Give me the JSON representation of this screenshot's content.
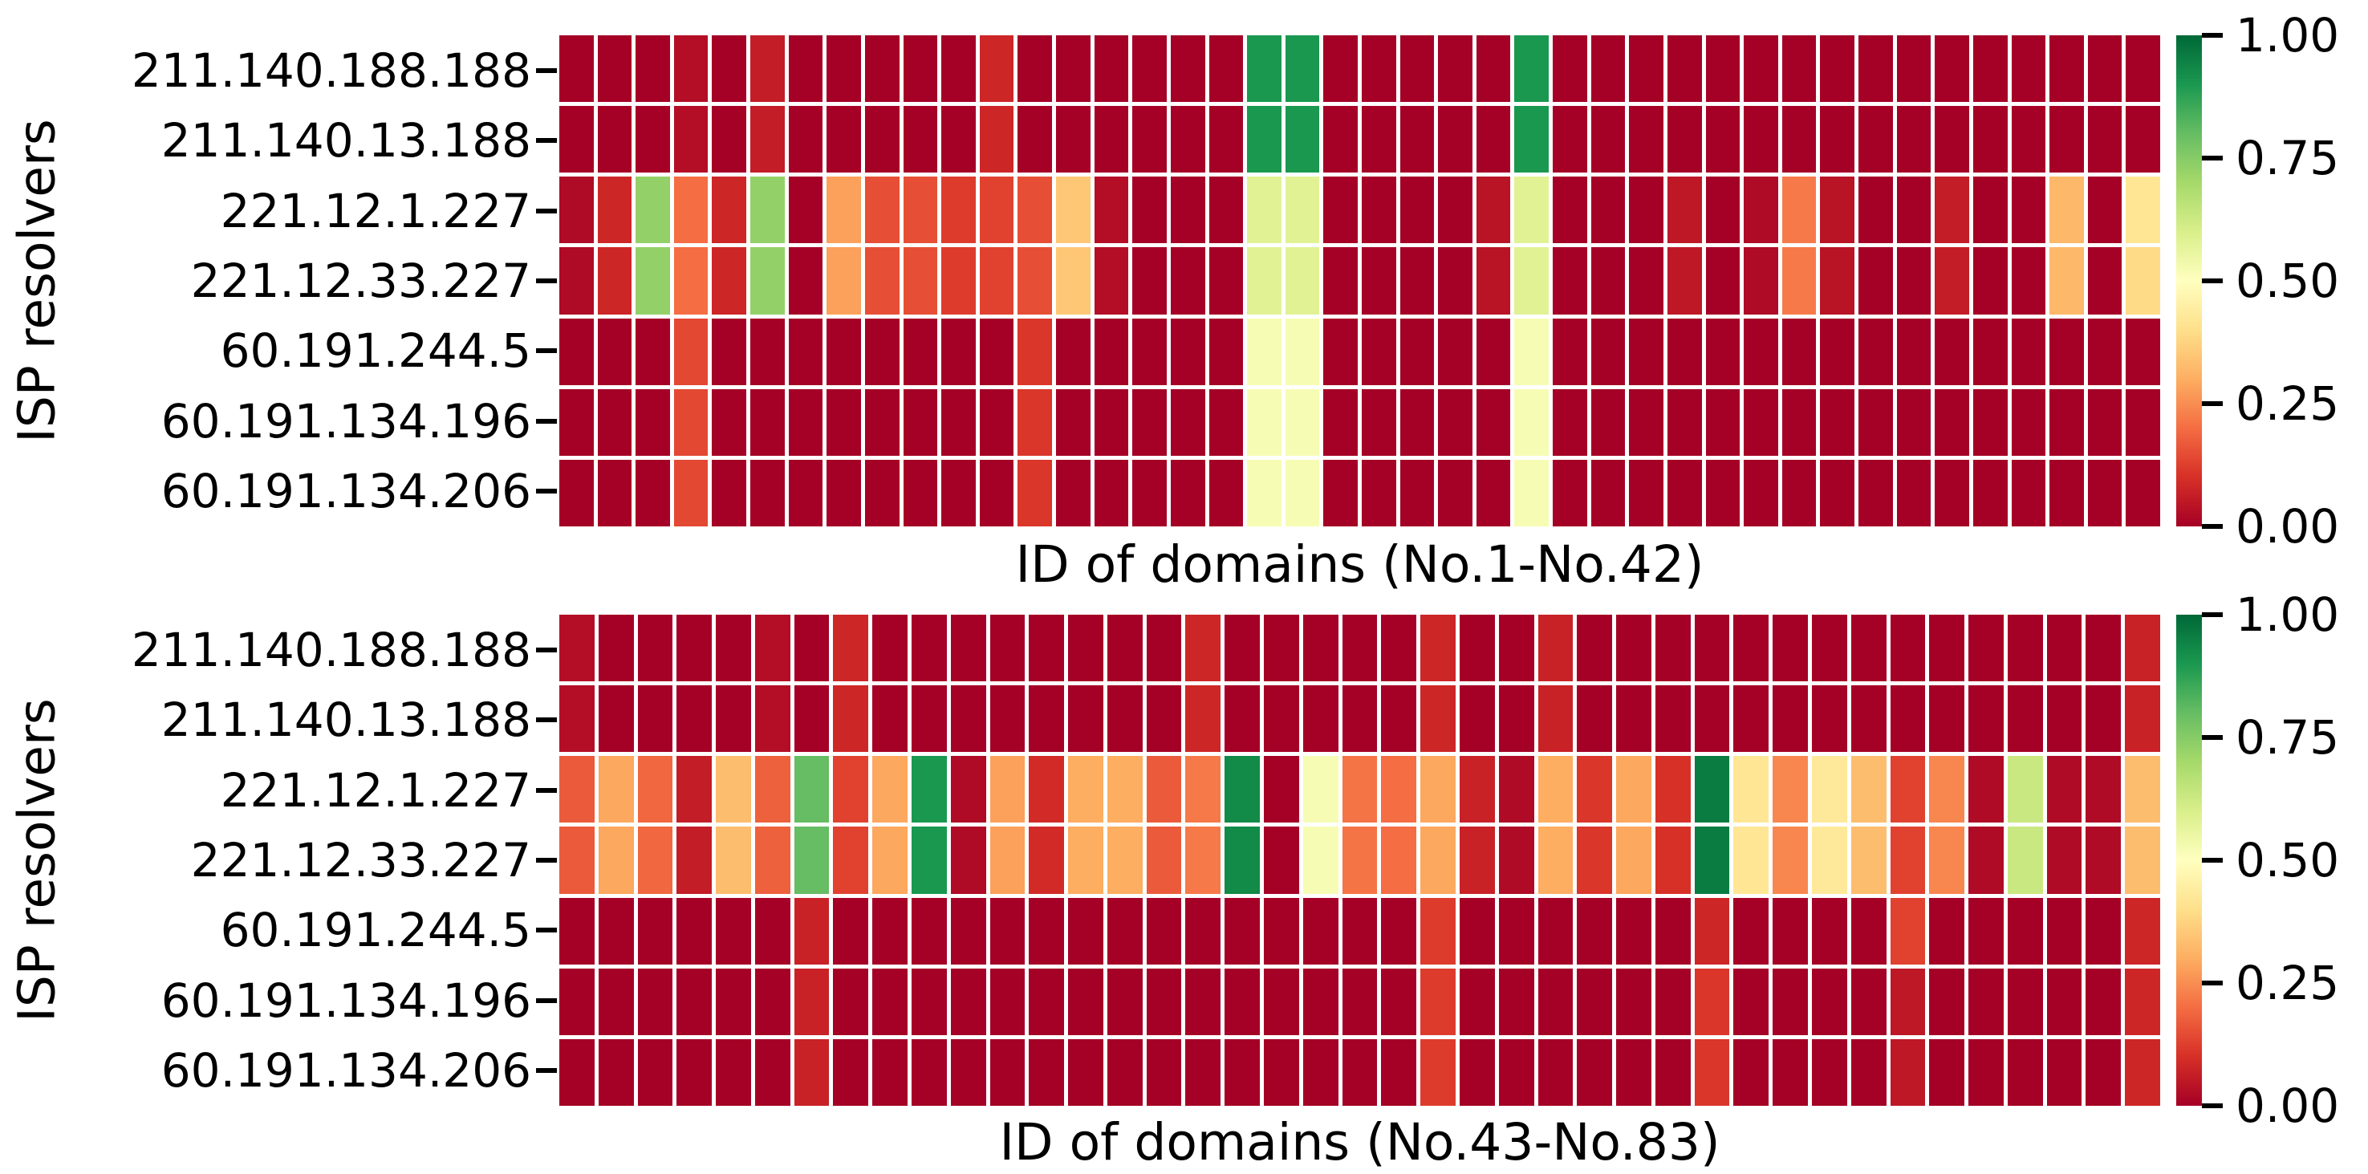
{
  "figure": {
    "background": "#ffffff",
    "text_color": "#000000"
  },
  "chart_data": [
    {
      "type": "heatmap",
      "xlabel": "ID of domains (No.1-No.42)",
      "ylabel": "ISP resolvers",
      "rows": [
        "211.140.188.188",
        "211.140.13.188",
        "221.12.1.227",
        "221.12.33.227",
        "60.191.244.5",
        "60.191.134.196",
        "60.191.134.206"
      ],
      "columns_note": "domain IDs No.1 through No.42, no tick labels shown",
      "n_cols": 42,
      "vmin": 0.0,
      "vmax": 1.0,
      "colormap": "RdYlGn",
      "colormap_stops": [
        "#a50026",
        "#d73027",
        "#f46d43",
        "#fdae61",
        "#fee08b",
        "#ffffbf",
        "#d9ef8b",
        "#a6d96a",
        "#66bd63",
        "#1a9850",
        "#006837"
      ],
      "colorbar_ticks": [
        "1.00",
        "0.75",
        "0.50",
        "0.25",
        "0.00"
      ],
      "values": [
        [
          0,
          0,
          0,
          0.03,
          0,
          0.06,
          0,
          0,
          0,
          0,
          0,
          0.08,
          0,
          0,
          0,
          0,
          0,
          0,
          0.9,
          0.9,
          0,
          0,
          0,
          0,
          0,
          0.9,
          0,
          0,
          0,
          0,
          0,
          0,
          0,
          0,
          0,
          0,
          0,
          0,
          0,
          0,
          0,
          0
        ],
        [
          0,
          0,
          0,
          0.03,
          0,
          0.06,
          0,
          0,
          0,
          0,
          0,
          0.08,
          0,
          0,
          0,
          0,
          0,
          0,
          0.9,
          0.9,
          0,
          0,
          0,
          0,
          0,
          0.9,
          0,
          0,
          0,
          0,
          0,
          0,
          0,
          0,
          0,
          0,
          0,
          0,
          0,
          0,
          0,
          0
        ],
        [
          0.02,
          0.08,
          0.73,
          0.2,
          0.08,
          0.73,
          0,
          0.28,
          0.15,
          0.15,
          0.12,
          0.13,
          0.15,
          0.35,
          0.03,
          0,
          0,
          0,
          0.58,
          0.58,
          0,
          0,
          0,
          0,
          0.04,
          0.58,
          0,
          0,
          0,
          0.05,
          0,
          0.02,
          0.22,
          0.04,
          0,
          0,
          0.06,
          0,
          0,
          0.32,
          0,
          0.42
        ],
        [
          0.02,
          0.08,
          0.73,
          0.2,
          0.08,
          0.73,
          0,
          0.28,
          0.15,
          0.15,
          0.12,
          0.13,
          0.15,
          0.35,
          0.03,
          0,
          0,
          0,
          0.58,
          0.58,
          0,
          0,
          0,
          0,
          0.04,
          0.58,
          0,
          0,
          0,
          0.05,
          0,
          0.02,
          0.22,
          0.04,
          0,
          0,
          0.06,
          0,
          0,
          0.32,
          0,
          0.39
        ],
        [
          0,
          0,
          0,
          0.14,
          0,
          0,
          0,
          0,
          0,
          0,
          0,
          0,
          0.11,
          0,
          0,
          0,
          0,
          0,
          0.52,
          0.52,
          0,
          0,
          0,
          0,
          0,
          0.52,
          0,
          0,
          0,
          0,
          0,
          0,
          0,
          0,
          0,
          0,
          0,
          0,
          0,
          0,
          0,
          0
        ],
        [
          0,
          0,
          0,
          0.14,
          0,
          0,
          0,
          0,
          0,
          0,
          0,
          0,
          0.11,
          0,
          0,
          0,
          0,
          0,
          0.52,
          0.52,
          0,
          0,
          0,
          0,
          0,
          0.52,
          0,
          0,
          0,
          0,
          0,
          0,
          0,
          0,
          0,
          0,
          0,
          0,
          0,
          0,
          0,
          0
        ],
        [
          0,
          0,
          0,
          0.14,
          0,
          0,
          0,
          0,
          0,
          0,
          0,
          0,
          0.11,
          0,
          0,
          0,
          0,
          0,
          0.52,
          0.52,
          0,
          0,
          0,
          0,
          0,
          0.52,
          0,
          0,
          0,
          0,
          0,
          0,
          0,
          0,
          0,
          0,
          0,
          0,
          0,
          0,
          0,
          0
        ]
      ]
    },
    {
      "type": "heatmap",
      "xlabel": "ID of domains (No.43-No.83)",
      "ylabel": "ISP resolvers",
      "rows": [
        "211.140.188.188",
        "211.140.13.188",
        "221.12.1.227",
        "221.12.33.227",
        "60.191.244.5",
        "60.191.134.196",
        "60.191.134.206"
      ],
      "columns_note": "domain IDs No.43 through No.83, no tick labels shown",
      "n_cols": 41,
      "vmin": 0.0,
      "vmax": 1.0,
      "colormap": "RdYlGn",
      "colormap_stops": [
        "#a50026",
        "#d73027",
        "#f46d43",
        "#fdae61",
        "#fee08b",
        "#ffffbf",
        "#d9ef8b",
        "#a6d96a",
        "#66bd63",
        "#1a9850",
        "#006837"
      ],
      "colorbar_ticks": [
        "1.00",
        "0.75",
        "0.50",
        "0.25",
        "0.00"
      ],
      "values": [
        [
          0.03,
          0,
          0,
          0,
          0,
          0.03,
          0,
          0.08,
          0,
          0,
          0,
          0,
          0,
          0,
          0,
          0,
          0.08,
          0,
          0,
          0,
          0,
          0,
          0.08,
          0,
          0,
          0.07,
          0,
          0,
          0,
          0,
          0,
          0,
          0,
          0,
          0,
          0,
          0,
          0,
          0,
          0,
          0.07
        ],
        [
          0.03,
          0,
          0,
          0,
          0,
          0.03,
          0,
          0.08,
          0,
          0,
          0,
          0,
          0,
          0,
          0,
          0,
          0.08,
          0,
          0,
          0,
          0,
          0,
          0.08,
          0,
          0,
          0.07,
          0,
          0,
          0,
          0,
          0,
          0,
          0,
          0,
          0,
          0,
          0,
          0,
          0,
          0,
          0.07
        ],
        [
          0.17,
          0.29,
          0.19,
          0.06,
          0.33,
          0.18,
          0.8,
          0.13,
          0.29,
          0.9,
          0.02,
          0.28,
          0.09,
          0.3,
          0.3,
          0.17,
          0.22,
          0.93,
          0,
          0.52,
          0.21,
          0.2,
          0.29,
          0.07,
          0.02,
          0.3,
          0.11,
          0.29,
          0.1,
          0.96,
          0.42,
          0.24,
          0.43,
          0.33,
          0.13,
          0.24,
          0.02,
          0.63,
          0.02,
          0.02,
          0.33
        ],
        [
          0.17,
          0.29,
          0.19,
          0.06,
          0.33,
          0.18,
          0.8,
          0.13,
          0.29,
          0.9,
          0.02,
          0.28,
          0.09,
          0.3,
          0.3,
          0.17,
          0.22,
          0.93,
          0,
          0.52,
          0.21,
          0.2,
          0.29,
          0.07,
          0.02,
          0.3,
          0.11,
          0.29,
          0.1,
          0.96,
          0.42,
          0.24,
          0.43,
          0.33,
          0.13,
          0.24,
          0.02,
          0.63,
          0.02,
          0.02,
          0.33
        ],
        [
          0,
          0,
          0,
          0,
          0,
          0,
          0.07,
          0,
          0,
          0,
          0,
          0,
          0,
          0,
          0,
          0,
          0,
          0,
          0,
          0,
          0,
          0,
          0.12,
          0,
          0,
          0,
          0,
          0,
          0,
          0.08,
          0,
          0,
          0,
          0,
          0.13,
          0,
          0,
          0,
          0,
          0,
          0.08
        ],
        [
          0,
          0,
          0,
          0,
          0,
          0,
          0.07,
          0,
          0,
          0,
          0,
          0,
          0,
          0,
          0,
          0,
          0,
          0,
          0,
          0,
          0,
          0,
          0.12,
          0,
          0,
          0,
          0,
          0,
          0,
          0.11,
          0,
          0,
          0,
          0,
          0.05,
          0,
          0,
          0,
          0,
          0,
          0.08
        ],
        [
          0,
          0,
          0,
          0,
          0,
          0,
          0.07,
          0,
          0,
          0,
          0,
          0,
          0,
          0,
          0,
          0,
          0,
          0,
          0,
          0,
          0,
          0,
          0.12,
          0,
          0,
          0,
          0,
          0,
          0,
          0.11,
          0,
          0,
          0,
          0,
          0.05,
          0,
          0,
          0,
          0,
          0,
          0.08
        ]
      ]
    }
  ]
}
